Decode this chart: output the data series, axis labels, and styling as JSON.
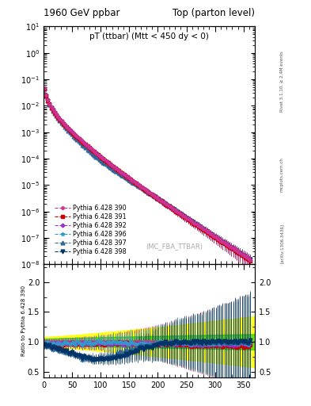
{
  "title_left": "1960 GeV ppbar",
  "title_right": "Top (parton level)",
  "plot_title_display": "pT (ttbar) (Mtt < 450 dy < 0)",
  "ylabel_ratio": "Ratio to Pythia 6.428 390",
  "annotation": "(MC_FBA_TTBAR)",
  "right_label_top": "Rivet 3.1.10, ≥ 2.4M events",
  "right_label_bottom": "[arXiv:1306.3436]",
  "right_label_url": "mcplots.cern.ch",
  "xlim": [
    0,
    370
  ],
  "ylim_main": [
    1e-08,
    10
  ],
  "ylim_ratio": [
    0.4,
    2.3
  ],
  "ratio_yticks": [
    0.5,
    1.0,
    1.5,
    2.0
  ],
  "series": [
    {
      "label": "Pythia 6.428 390",
      "color": "#cc3399",
      "marker": "o",
      "linestyle": "--"
    },
    {
      "label": "Pythia 6.428 391",
      "color": "#cc0000",
      "marker": "s",
      "linestyle": "--"
    },
    {
      "label": "Pythia 6.428 392",
      "color": "#9933cc",
      "marker": "D",
      "linestyle": "--"
    },
    {
      "label": "Pythia 6.428 396",
      "color": "#3399cc",
      "marker": "*",
      "linestyle": "--"
    },
    {
      "label": "Pythia 6.428 397",
      "color": "#336699",
      "marker": "^",
      "linestyle": "--"
    },
    {
      "label": "Pythia 6.428 398",
      "color": "#003366",
      "marker": "v",
      "linestyle": "--"
    }
  ],
  "background_color": "#ffffff"
}
